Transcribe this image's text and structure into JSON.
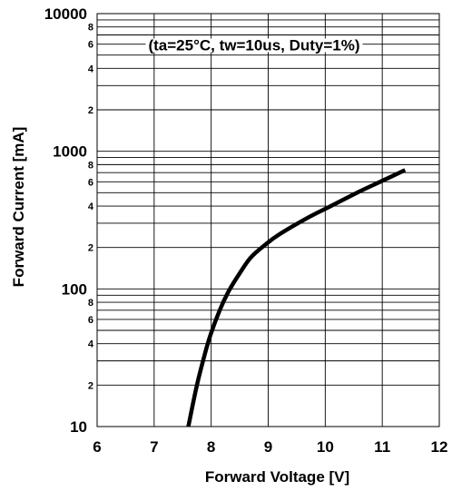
{
  "chart_data": {
    "type": "line",
    "annotation": "(ta=25°C, tw=10us, Duty=1%)",
    "xlabel": "Forward Voltage [V]",
    "ylabel": "Forward Current [mA]",
    "xlim": [
      6,
      12
    ],
    "ylim": [
      10,
      10000
    ],
    "y_scale": "log",
    "grid": true,
    "x_ticks": [
      "6",
      "7",
      "8",
      "9",
      "10",
      "11",
      "12"
    ],
    "y_major_ticks": [
      "10",
      "100",
      "1000",
      "10000"
    ],
    "y_minor_ticks": [
      {
        "value": 20,
        "label": "2"
      },
      {
        "value": 40,
        "label": "4"
      },
      {
        "value": 60,
        "label": "6"
      },
      {
        "value": 80,
        "label": "8"
      },
      {
        "value": 200,
        "label": "2"
      },
      {
        "value": 400,
        "label": "4"
      },
      {
        "value": 600,
        "label": "6"
      },
      {
        "value": 800,
        "label": "8"
      },
      {
        "value": 2000,
        "label": "2"
      },
      {
        "value": 4000,
        "label": "4"
      },
      {
        "value": 6000,
        "label": "6"
      },
      {
        "value": 8000,
        "label": "8"
      }
    ],
    "series": [
      {
        "color": "#000000",
        "points": [
          [
            7.6,
            10
          ],
          [
            7.75,
            20
          ],
          [
            7.9,
            35
          ],
          [
            8.0,
            48
          ],
          [
            8.15,
            70
          ],
          [
            8.3,
            95
          ],
          [
            8.5,
            130
          ],
          [
            8.7,
            170
          ],
          [
            8.95,
            210
          ],
          [
            9.2,
            250
          ],
          [
            9.7,
            330
          ],
          [
            10.1,
            400
          ],
          [
            10.6,
            510
          ],
          [
            11.0,
            610
          ],
          [
            11.4,
            730
          ]
        ]
      }
    ]
  }
}
